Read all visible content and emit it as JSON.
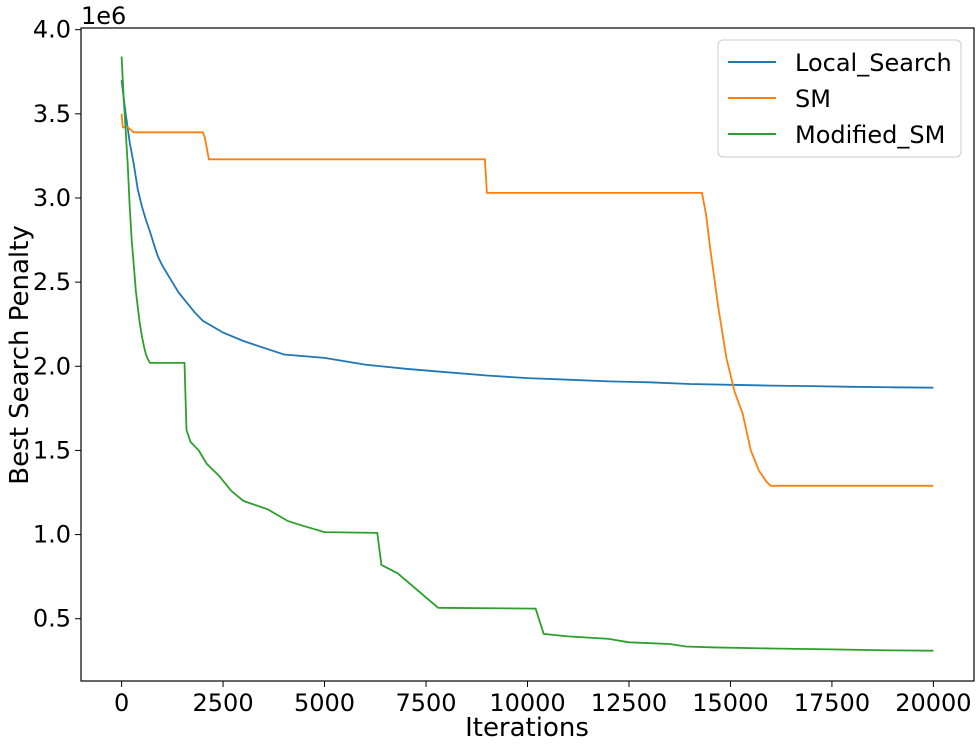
{
  "chart_data": {
    "type": "line",
    "xlabel": "Iterations",
    "ylabel": "Best Search Penalty",
    "y_offset_label": "1e6",
    "xlim": [
      -1000,
      21000
    ],
    "ylim": [
      0.13,
      4.01
    ],
    "y_scale_note": "values in units of 1e6",
    "xticks": [
      0,
      2500,
      5000,
      7500,
      10000,
      12500,
      15000,
      17500,
      20000
    ],
    "yticks": [
      0.5,
      1.0,
      1.5,
      2.0,
      2.5,
      3.0,
      3.5,
      4.0
    ],
    "ytick_labels": [
      "0.5",
      "1.0",
      "1.5",
      "2.0",
      "2.5",
      "3.0",
      "3.5",
      "4.0"
    ],
    "legend_position": "top-right",
    "grid": false,
    "series": [
      {
        "name": "Local_Search",
        "color": "#1f77b4",
        "x": [
          0,
          50,
          100,
          200,
          300,
          400,
          500,
          600,
          700,
          800,
          900,
          1000,
          1200,
          1400,
          1600,
          1800,
          2000,
          2500,
          3000,
          3500,
          4000,
          5000,
          6000,
          7000,
          8000,
          9000,
          10000,
          11000,
          12000,
          13000,
          14000,
          15000,
          16000,
          17000,
          18000,
          19000,
          20000
        ],
        "y": [
          3.7,
          3.6,
          3.5,
          3.33,
          3.2,
          3.05,
          2.95,
          2.87,
          2.8,
          2.72,
          2.65,
          2.6,
          2.52,
          2.44,
          2.38,
          2.32,
          2.27,
          2.2,
          2.15,
          2.11,
          2.07,
          2.05,
          2.01,
          1.985,
          1.965,
          1.945,
          1.93,
          1.92,
          1.91,
          1.905,
          1.895,
          1.89,
          1.885,
          1.882,
          1.878,
          1.875,
          1.873
        ]
      },
      {
        "name": "SM",
        "color": "#ff7f0e",
        "x": [
          0,
          30,
          150,
          300,
          2000,
          2050,
          2150,
          8950,
          9000,
          14300,
          14400,
          14500,
          14700,
          14900,
          15100,
          15300,
          15500,
          15700,
          15900,
          16000,
          20000
        ],
        "y": [
          3.5,
          3.42,
          3.42,
          3.39,
          3.39,
          3.36,
          3.23,
          3.23,
          3.03,
          3.03,
          2.9,
          2.7,
          2.35,
          2.05,
          1.85,
          1.72,
          1.5,
          1.38,
          1.31,
          1.29,
          1.29
        ]
      },
      {
        "name": "Modified_SM",
        "color": "#2ca02c",
        "x": [
          0,
          50,
          100,
          150,
          200,
          250,
          300,
          350,
          400,
          450,
          500,
          550,
          600,
          650,
          700,
          1550,
          1600,
          1700,
          1900,
          2100,
          2400,
          2700,
          3000,
          3600,
          4100,
          4500,
          5000,
          6300,
          6400,
          6800,
          7800,
          10200,
          10400,
          11000,
          12000,
          12500,
          13500,
          13900,
          14500,
          16000,
          17500,
          19000,
          20000
        ],
        "y": [
          3.84,
          3.6,
          3.4,
          3.2,
          2.95,
          2.75,
          2.6,
          2.45,
          2.35,
          2.25,
          2.18,
          2.12,
          2.07,
          2.04,
          2.02,
          2.02,
          1.62,
          1.55,
          1.5,
          1.42,
          1.35,
          1.26,
          1.2,
          1.15,
          1.08,
          1.05,
          1.015,
          1.01,
          0.82,
          0.77,
          0.565,
          0.56,
          0.41,
          0.395,
          0.38,
          0.36,
          0.35,
          0.335,
          0.33,
          0.323,
          0.318,
          0.312,
          0.31
        ]
      }
    ]
  }
}
